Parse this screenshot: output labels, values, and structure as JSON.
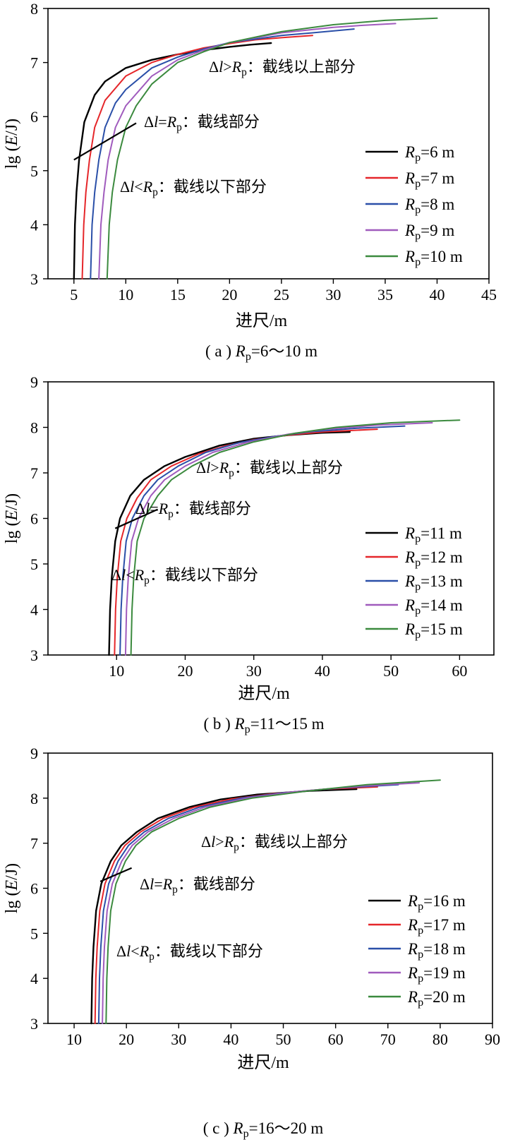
{
  "chart_data": [
    {
      "type": "line",
      "caption": "( a ) Rp=6～10 m",
      "xlabel": "进尺/m",
      "ylabel": "lg (E/J)",
      "xlim": [
        2.5,
        45
      ],
      "ylim": [
        3,
        8
      ],
      "xticks": [
        5,
        10,
        15,
        20,
        25,
        30,
        35,
        40,
        45
      ],
      "yticks": [
        3,
        4,
        5,
        6,
        7,
        8
      ],
      "annotations": {
        "above": "Δl>Rp：截线以上部分",
        "cut": "Δl=Rp：截线部分",
        "below": "Δl<Rp：截线以下部分"
      },
      "cut_line": {
        "x": [
          5.0,
          11.0
        ],
        "y": [
          5.2,
          5.88
        ]
      },
      "series": [
        {
          "name": "Rp=6 m",
          "label": "Rp=6 m",
          "color": "#000000",
          "x": [
            5.0,
            5.1,
            5.25,
            5.5,
            6,
            7,
            8,
            10,
            12.5,
            15,
            17.5,
            20,
            22,
            24
          ],
          "y": [
            3.0,
            4.0,
            4.6,
            5.2,
            5.9,
            6.4,
            6.65,
            6.9,
            7.05,
            7.15,
            7.23,
            7.29,
            7.33,
            7.36
          ]
        },
        {
          "name": "Rp=7 m",
          "label": "Rp=7 m",
          "color": "#e5262a",
          "x": [
            5.8,
            5.95,
            6.15,
            6.5,
            7,
            8,
            10,
            12.5,
            15,
            17.5,
            20,
            22.5,
            25,
            28
          ],
          "y": [
            3.0,
            4.0,
            4.6,
            5.2,
            5.8,
            6.3,
            6.75,
            7.0,
            7.15,
            7.27,
            7.35,
            7.42,
            7.46,
            7.5
          ]
        },
        {
          "name": "Rp=8 m",
          "label": "Rp=8 m",
          "color": "#2a4fa8",
          "x": [
            6.6,
            6.75,
            7.0,
            7.4,
            8,
            9,
            10,
            12.5,
            15,
            17.5,
            20,
            25,
            28,
            32
          ],
          "y": [
            3.0,
            4.0,
            4.6,
            5.2,
            5.8,
            6.25,
            6.5,
            6.9,
            7.1,
            7.25,
            7.37,
            7.5,
            7.55,
            7.62
          ]
        },
        {
          "name": "Rp=9 m",
          "label": "Rp=9 m",
          "color": "#a05bbd",
          "x": [
            7.4,
            7.6,
            7.9,
            8.3,
            9,
            10,
            12.5,
            15,
            17.5,
            20,
            25,
            30,
            33,
            36
          ],
          "y": [
            3.0,
            4.0,
            4.6,
            5.2,
            5.8,
            6.2,
            6.75,
            7.05,
            7.23,
            7.37,
            7.55,
            7.65,
            7.69,
            7.72
          ]
        },
        {
          "name": "Rp=10 m",
          "label": "Rp=10 m",
          "color": "#3b8a3e",
          "x": [
            8.2,
            8.4,
            8.7,
            9.2,
            10,
            11,
            12.5,
            15,
            17.5,
            20,
            25,
            30,
            35,
            40
          ],
          "y": [
            3.0,
            4.0,
            4.6,
            5.2,
            5.8,
            6.2,
            6.6,
            7.0,
            7.2,
            7.37,
            7.57,
            7.7,
            7.78,
            7.82
          ]
        }
      ]
    },
    {
      "type": "line",
      "caption": "( b ) Rp=11～15 m",
      "xlabel": "进尺/m",
      "ylabel": "lg (E/J)",
      "xlim": [
        0,
        65
      ],
      "ylim": [
        3,
        9
      ],
      "xticks": [
        10,
        20,
        30,
        40,
        50,
        60
      ],
      "yticks": [
        3,
        4,
        5,
        6,
        7,
        8,
        9
      ],
      "annotations": {
        "above": "Δl>Rp：截线以上部分",
        "cut": "Δl=Rp：截线部分",
        "below": "Δl<Rp：截线以下部分"
      },
      "cut_line": {
        "x": [
          9.8,
          16.0
        ],
        "y": [
          5.78,
          6.2
        ]
      },
      "series": [
        {
          "name": "Rp=11 m",
          "label": "Rp=11 m",
          "color": "#000000",
          "x": [
            8.9,
            9.05,
            9.3,
            9.8,
            10.5,
            12,
            14,
            17,
            20,
            25,
            30,
            35,
            40,
            44
          ],
          "y": [
            3.0,
            4.0,
            4.7,
            5.5,
            6.0,
            6.5,
            6.85,
            7.15,
            7.35,
            7.6,
            7.75,
            7.83,
            7.88,
            7.9
          ]
        },
        {
          "name": "Rp=12 m",
          "label": "Rp=12 m",
          "color": "#e5262a",
          "x": [
            9.7,
            9.85,
            10.1,
            10.6,
            11.5,
            13,
            15,
            18,
            22,
            26,
            30,
            35,
            40,
            48
          ],
          "y": [
            3.0,
            4.0,
            4.7,
            5.5,
            6.0,
            6.45,
            6.85,
            7.15,
            7.42,
            7.6,
            7.73,
            7.83,
            7.9,
            7.96
          ]
        },
        {
          "name": "Rp=13 m",
          "label": "Rp=13 m",
          "color": "#2a4fa8",
          "x": [
            10.5,
            10.65,
            10.9,
            11.4,
            12.3,
            14,
            16,
            19,
            23,
            28,
            33,
            38,
            45,
            52
          ],
          "y": [
            3.0,
            4.0,
            4.7,
            5.5,
            6.0,
            6.5,
            6.85,
            7.15,
            7.45,
            7.67,
            7.8,
            7.9,
            7.98,
            8.03
          ]
        },
        {
          "name": "Rp=14 m",
          "label": "Rp=14 m",
          "color": "#a05bbd",
          "x": [
            11.3,
            11.45,
            11.7,
            12.2,
            13.2,
            15,
            17,
            20,
            24,
            29,
            35,
            40,
            48,
            56
          ],
          "y": [
            3.0,
            4.0,
            4.7,
            5.5,
            6.0,
            6.5,
            6.85,
            7.15,
            7.45,
            7.67,
            7.85,
            7.95,
            8.05,
            8.1
          ]
        },
        {
          "name": "Rp=15 m",
          "label": "Rp=15 m",
          "color": "#3b8a3e",
          "x": [
            12.1,
            12.25,
            12.5,
            13.0,
            14.0,
            16,
            18,
            21,
            25,
            30,
            36,
            42,
            50,
            60
          ],
          "y": [
            3.0,
            4.0,
            4.7,
            5.5,
            6.0,
            6.5,
            6.85,
            7.15,
            7.45,
            7.68,
            7.87,
            8.0,
            8.1,
            8.16
          ]
        }
      ]
    },
    {
      "type": "line",
      "caption": "( c ) Rp=16～20 m",
      "xlabel": "进尺/m",
      "ylabel": "lg (E/J)",
      "xlim": [
        5,
        90
      ],
      "ylim": [
        3,
        9
      ],
      "xticks": [
        10,
        20,
        30,
        40,
        50,
        60,
        70,
        80,
        90
      ],
      "yticks": [
        3,
        4,
        5,
        6,
        7,
        8,
        9
      ],
      "annotations": {
        "above": "Δl>Rp：截线以上部分",
        "cut": "Δl=Rp：截线部分",
        "below": "Δl<Rp：截线以下部分"
      },
      "cut_line": {
        "x": [
          15.0,
          21.0
        ],
        "y": [
          6.15,
          6.45
        ]
      },
      "series": [
        {
          "name": "Rp=16 m",
          "label": "Rp=16 m",
          "color": "#000000",
          "x": [
            13.3,
            13.45,
            13.7,
            14.2,
            15.2,
            17,
            19,
            22,
            26,
            32,
            38,
            45,
            55,
            64
          ],
          "y": [
            3.0,
            4.0,
            4.7,
            5.5,
            6.1,
            6.6,
            6.95,
            7.25,
            7.55,
            7.8,
            7.97,
            8.08,
            8.16,
            8.2
          ]
        },
        {
          "name": "Rp=17 m",
          "label": "Rp=17 m",
          "color": "#e5262a",
          "x": [
            14.0,
            14.15,
            14.4,
            14.9,
            15.9,
            17.7,
            19.7,
            22.7,
            27,
            33,
            40,
            48,
            58,
            68
          ],
          "y": [
            3.0,
            4.0,
            4.7,
            5.5,
            6.1,
            6.6,
            6.95,
            7.25,
            7.55,
            7.8,
            7.98,
            8.1,
            8.2,
            8.25
          ]
        },
        {
          "name": "Rp=18 m",
          "label": "Rp=18 m",
          "color": "#2a4fa8",
          "x": [
            14.7,
            14.85,
            15.1,
            15.6,
            16.6,
            18.4,
            20.4,
            23.4,
            28,
            34,
            42,
            50,
            61,
            72
          ],
          "y": [
            3.0,
            4.0,
            4.7,
            5.5,
            6.1,
            6.6,
            6.95,
            7.25,
            7.55,
            7.8,
            8.0,
            8.12,
            8.23,
            8.3
          ]
        },
        {
          "name": "Rp=19 m",
          "label": "Rp=19 m",
          "color": "#a05bbd",
          "x": [
            15.4,
            15.55,
            15.8,
            16.3,
            17.3,
            19.1,
            21.1,
            24.1,
            29,
            35,
            43,
            52,
            64,
            76
          ],
          "y": [
            3.0,
            4.0,
            4.7,
            5.5,
            6.1,
            6.6,
            6.95,
            7.25,
            7.55,
            7.8,
            8.0,
            8.14,
            8.26,
            8.34
          ]
        },
        {
          "name": "Rp=20 m",
          "label": "Rp=20 m",
          "color": "#3b8a3e",
          "x": [
            16.1,
            16.25,
            16.5,
            17.0,
            18.0,
            19.8,
            21.8,
            24.8,
            30,
            36,
            44,
            54,
            66,
            80
          ],
          "y": [
            3.0,
            4.0,
            4.7,
            5.5,
            6.1,
            6.6,
            6.95,
            7.25,
            7.55,
            7.8,
            8.0,
            8.15,
            8.3,
            8.4
          ]
        }
      ]
    }
  ]
}
